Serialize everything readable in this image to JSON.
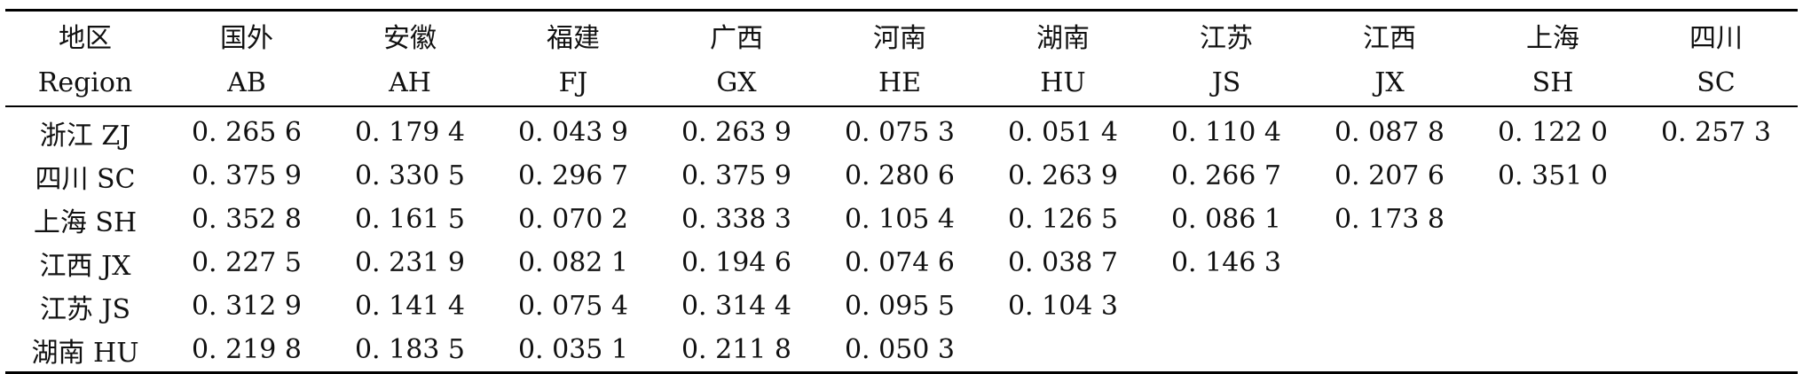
{
  "table": {
    "columns": [
      {
        "zh": "地区",
        "en": "Region"
      },
      {
        "zh": "国外",
        "en": "AB"
      },
      {
        "zh": "安徽",
        "en": "AH"
      },
      {
        "zh": "福建",
        "en": "FJ"
      },
      {
        "zh": "广西",
        "en": "GX"
      },
      {
        "zh": "河南",
        "en": "HE"
      },
      {
        "zh": "湖南",
        "en": "HU"
      },
      {
        "zh": "江苏",
        "en": "JS"
      },
      {
        "zh": "江西",
        "en": "JX"
      },
      {
        "zh": "上海",
        "en": "SH"
      },
      {
        "zh": "四川",
        "en": "SC"
      }
    ],
    "rows": [
      {
        "region": "浙江 ZJ",
        "values": [
          "0. 265 6",
          "0. 179 4",
          "0. 043 9",
          "0. 263 9",
          "0. 075 3",
          "0. 051 4",
          "0. 110 4",
          "0. 087 8",
          "0. 122 0",
          "0. 257 3"
        ]
      },
      {
        "region": "四川 SC",
        "values": [
          "0. 375 9",
          "0. 330 5",
          "0. 296 7",
          "0. 375 9",
          "0. 280 6",
          "0. 263 9",
          "0. 266 7",
          "0. 207 6",
          "0. 351 0",
          ""
        ]
      },
      {
        "region": "上海 SH",
        "values": [
          "0. 352 8",
          "0. 161 5",
          "0. 070 2",
          "0. 338 3",
          "0. 105 4",
          "0. 126 5",
          "0. 086 1",
          "0. 173 8",
          "",
          ""
        ]
      },
      {
        "region": "江西 JX",
        "values": [
          "0. 227 5",
          "0. 231 9",
          "0. 082 1",
          "0. 194 6",
          "0. 074 6",
          "0. 038 7",
          "0. 146 3",
          "",
          "",
          ""
        ]
      },
      {
        "region": "江苏 JS",
        "values": [
          "0. 312 9",
          "0. 141 4",
          "0. 075 4",
          "0. 314 4",
          "0. 095 5",
          "0. 104 3",
          "",
          "",
          "",
          ""
        ]
      },
      {
        "region": "湖南 HU",
        "values": [
          "0. 219 8",
          "0. 183 5",
          "0. 035 1",
          "0. 211 8",
          "0. 050 3",
          "",
          "",
          "",
          "",
          ""
        ]
      }
    ]
  }
}
